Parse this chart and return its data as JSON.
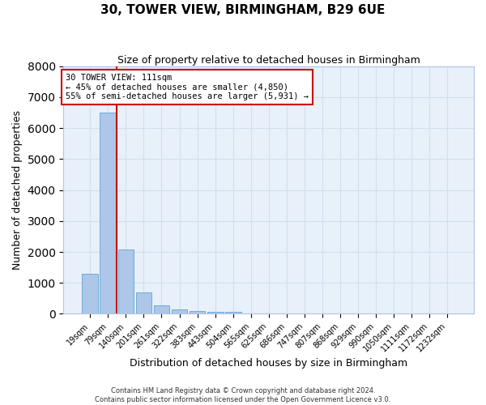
{
  "title": "30, TOWER VIEW, BIRMINGHAM, B29 6UE",
  "subtitle": "Size of property relative to detached houses in Birmingham",
  "xlabel": "Distribution of detached houses by size in Birmingham",
  "ylabel": "Number of detached properties",
  "categories": [
    "19sqm",
    "79sqm",
    "140sqm",
    "201sqm",
    "261sqm",
    "322sqm",
    "383sqm",
    "443sqm",
    "504sqm",
    "565sqm",
    "625sqm",
    "686sqm",
    "747sqm",
    "807sqm",
    "868sqm",
    "929sqm",
    "990sqm",
    "1050sqm",
    "1111sqm",
    "1172sqm",
    "1232sqm"
  ],
  "values": [
    1300,
    6500,
    2080,
    680,
    280,
    150,
    100,
    60,
    60,
    0,
    0,
    0,
    0,
    0,
    0,
    0,
    0,
    0,
    0,
    0,
    0
  ],
  "bar_color": "#aec6e8",
  "bar_edge_color": "#6baed6",
  "vline_color": "#cc0000",
  "ylim": [
    0,
    8000
  ],
  "yticks": [
    0,
    1000,
    2000,
    3000,
    4000,
    5000,
    6000,
    7000,
    8000
  ],
  "annotation_text": "30 TOWER VIEW: 111sqm\n← 45% of detached houses are smaller (4,850)\n55% of semi-detached houses are larger (5,931) →",
  "annotation_box_color": "#ffffff",
  "annotation_border_color": "#cc0000",
  "grid_color": "#d0dff0",
  "bg_color": "#e8f0fa",
  "fig_bg_color": "#ffffff",
  "footer_line1": "Contains HM Land Registry data © Crown copyright and database right 2024.",
  "footer_line2": "Contains public sector information licensed under the Open Government Licence v3.0."
}
